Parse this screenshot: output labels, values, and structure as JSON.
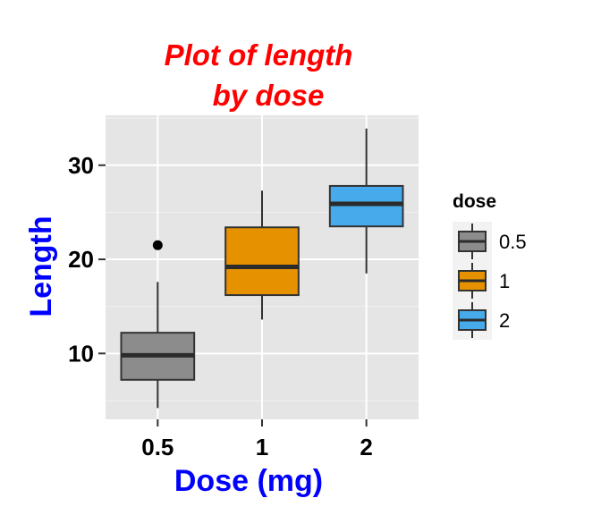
{
  "chart_data": {
    "type": "boxplot",
    "title_lines": [
      "Plot of length",
      "by dose"
    ],
    "xlabel": "Dose (mg)",
    "ylabel": "Length",
    "categories": [
      "0.5",
      "1",
      "2"
    ],
    "yticks": [
      10,
      20,
      30
    ],
    "ylim": [
      3,
      35.3
    ],
    "grid": true,
    "legend": {
      "title": "dose",
      "position": "right",
      "entries": [
        "0.5",
        "1",
        "2"
      ]
    },
    "colors": [
      "#8c8c8c",
      "#e69100",
      "#47aaeb"
    ],
    "boxes": [
      {
        "category": "0.5",
        "min": 4.2,
        "q1": 7.2,
        "median": 9.8,
        "q3": 12.2,
        "max": 17.6,
        "outliers": [
          21.5
        ]
      },
      {
        "category": "1",
        "min": 13.6,
        "q1": 16.2,
        "median": 19.2,
        "q3": 23.4,
        "max": 27.3,
        "outliers": []
      },
      {
        "category": "2",
        "min": 18.5,
        "q1": 23.5,
        "median": 25.9,
        "q3": 27.8,
        "max": 33.9,
        "outliers": []
      }
    ]
  }
}
